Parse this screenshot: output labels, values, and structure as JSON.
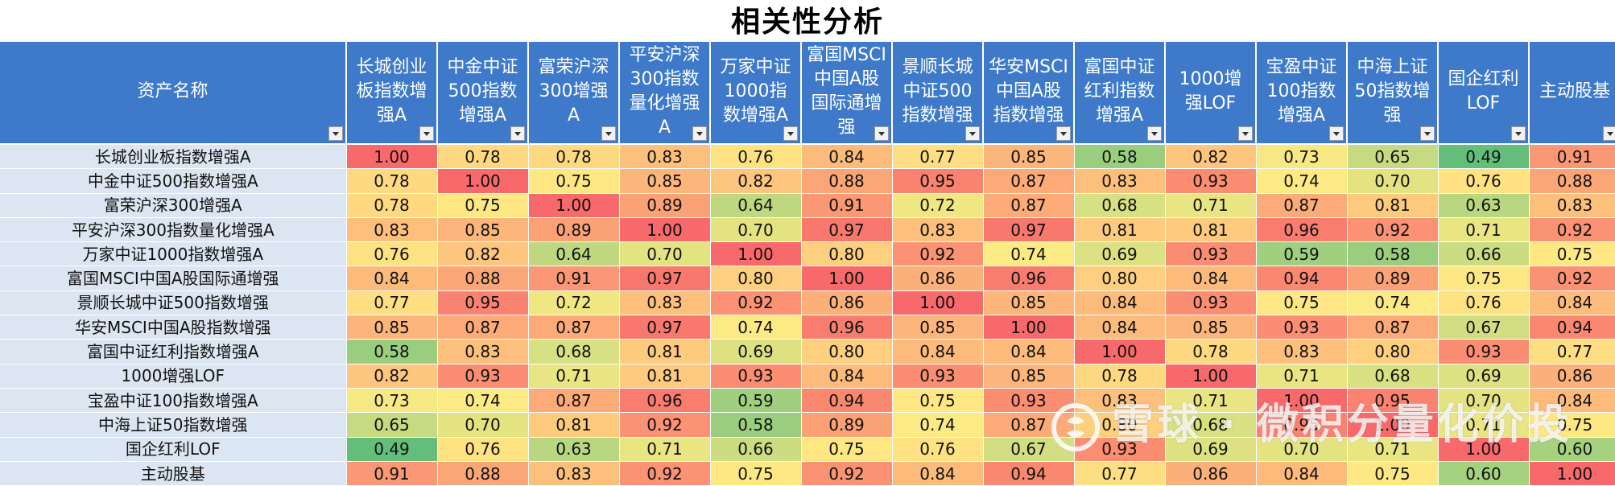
{
  "title": "相关性分析",
  "header": {
    "name_col": "资产名称",
    "columns": [
      "长城创业板指数增强A",
      "中金中证500指数增强A",
      "富荣沪深300增强A",
      "平安沪深300指数量化增强A",
      "万家中证1000指数增强A",
      "富国MSCI中国A股国际通增强",
      "景顺长城中证500指数增强",
      "华安MSCI中国A股指数增强",
      "富国中证红利指数增强A",
      "1000增强LOF",
      "宝盈中证100指数增强A",
      "中海上证50指数增强",
      "国企红利LOF",
      "主动股基"
    ]
  },
  "rows": [
    {
      "name": "长城创业板指数增强A",
      "values": [
        "1.00",
        "0.78",
        "0.78",
        "0.83",
        "0.76",
        "0.84",
        "0.77",
        "0.85",
        "0.58",
        "0.82",
        "0.73",
        "0.65",
        "0.49",
        "0.91"
      ]
    },
    {
      "name": "中金中证500指数增强A",
      "values": [
        "0.78",
        "1.00",
        "0.75",
        "0.85",
        "0.82",
        "0.88",
        "0.95",
        "0.87",
        "0.83",
        "0.93",
        "0.74",
        "0.70",
        "0.76",
        "0.88"
      ]
    },
    {
      "name": "富荣沪深300增强A",
      "values": [
        "0.78",
        "0.75",
        "1.00",
        "0.89",
        "0.64",
        "0.91",
        "0.72",
        "0.87",
        "0.68",
        "0.71",
        "0.87",
        "0.81",
        "0.63",
        "0.83"
      ]
    },
    {
      "name": "平安沪深300指数量化增强A",
      "values": [
        "0.83",
        "0.85",
        "0.89",
        "1.00",
        "0.70",
        "0.97",
        "0.83",
        "0.97",
        "0.81",
        "0.81",
        "0.96",
        "0.92",
        "0.71",
        "0.92"
      ]
    },
    {
      "name": "万家中证1000指数增强A",
      "values": [
        "0.76",
        "0.82",
        "0.64",
        "0.70",
        "1.00",
        "0.80",
        "0.92",
        "0.74",
        "0.69",
        "0.93",
        "0.59",
        "0.58",
        "0.66",
        "0.75"
      ]
    },
    {
      "name": "富国MSCI中国A股国际通增强",
      "values": [
        "0.84",
        "0.88",
        "0.91",
        "0.97",
        "0.80",
        "1.00",
        "0.86",
        "0.96",
        "0.80",
        "0.84",
        "0.94",
        "0.89",
        "0.75",
        "0.92"
      ]
    },
    {
      "name": "景顺长城中证500指数增强",
      "values": [
        "0.77",
        "0.95",
        "0.72",
        "0.83",
        "0.92",
        "0.86",
        "1.00",
        "0.85",
        "0.84",
        "0.93",
        "0.75",
        "0.74",
        "0.76",
        "0.84"
      ]
    },
    {
      "name": "华安MSCI中国A股指数增强",
      "values": [
        "0.85",
        "0.87",
        "0.87",
        "0.97",
        "0.74",
        "0.96",
        "0.85",
        "1.00",
        "0.84",
        "0.85",
        "0.93",
        "0.87",
        "0.67",
        "0.94"
      ]
    },
    {
      "name": "富国中证红利指数增强A",
      "values": [
        "0.58",
        "0.83",
        "0.68",
        "0.81",
        "0.69",
        "0.80",
        "0.84",
        "0.84",
        "1.00",
        "0.78",
        "0.83",
        "0.80",
        "0.93",
        "0.77"
      ]
    },
    {
      "name": "1000增强LOF",
      "values": [
        "0.82",
        "0.93",
        "0.71",
        "0.81",
        "0.93",
        "0.84",
        "0.93",
        "0.85",
        "0.78",
        "1.00",
        "0.71",
        "0.68",
        "0.69",
        "0.86"
      ]
    },
    {
      "name": "宝盈中证100指数增强A",
      "values": [
        "0.73",
        "0.74",
        "0.87",
        "0.96",
        "0.59",
        "0.94",
        "0.75",
        "0.93",
        "0.83",
        "0.71",
        "1.00",
        "0.95",
        "0.70",
        "0.84"
      ]
    },
    {
      "name": "中海上证50指数增强",
      "values": [
        "0.65",
        "0.70",
        "0.81",
        "0.92",
        "0.58",
        "0.89",
        "0.74",
        "0.87",
        "0.80",
        "0.68",
        "0.95",
        "1.00",
        "0.71",
        "0.75"
      ]
    },
    {
      "name": "国企红利LOF",
      "values": [
        "0.49",
        "0.76",
        "0.63",
        "0.71",
        "0.66",
        "0.75",
        "0.76",
        "0.67",
        "0.93",
        "0.69",
        "0.70",
        "0.71",
        "1.00",
        "0.60"
      ]
    },
    {
      "name": "主动股基",
      "values": [
        "0.91",
        "0.88",
        "0.83",
        "0.92",
        "0.75",
        "0.92",
        "0.84",
        "0.94",
        "0.77",
        "0.86",
        "0.84",
        "0.75",
        "0.60",
        "1.00"
      ]
    }
  ],
  "watermark": "雪球 · 微积分量化价投",
  "colors": {
    "header_bg": "#3e7ac9",
    "rowname_bg": "#dce6f2",
    "scale_low": "#63be7b",
    "scale_mid": "#ffeb84",
    "scale_high": "#f8696b"
  }
}
